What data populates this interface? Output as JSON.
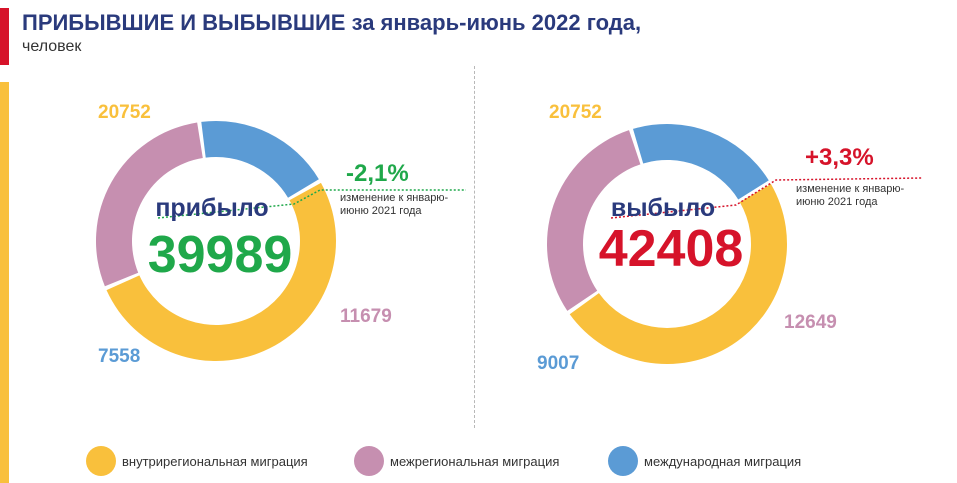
{
  "header": {
    "title_bold": "ПРИБЫВШИЕ И ВЫБЫВШИЕ",
    "title_rest": "за январь-июнь 2022 года,",
    "unit": "человек"
  },
  "colors": {
    "intraregional": "#f9c03c",
    "interregional": "#c68fb0",
    "international": "#5b9bd5",
    "title": "#2a3a7c",
    "positive": "#1fa84a",
    "negative": "#d6132a"
  },
  "chart_data": [
    {
      "type": "pie",
      "center_label": "прибыло",
      "total": "39989",
      "change": "-2,1%",
      "change_note": [
        "изменение к январю-",
        "июню 2021 года"
      ],
      "slices": [
        {
          "key": "intraregional",
          "label": "внутрирегиональная миграция",
          "value": 20752
        },
        {
          "key": "interregional",
          "label": "межрегиональная миграция",
          "value": 11679
        },
        {
          "key": "international",
          "label": "международная миграция",
          "value": 7558
        }
      ]
    },
    {
      "type": "pie",
      "center_label": "выбыло",
      "total": "42408",
      "change": "+3,3%",
      "change_note": [
        "изменение к январю-",
        "июню 2021 года"
      ],
      "slices": [
        {
          "key": "intraregional",
          "label": "внутрирегиональная миграция",
          "value": 20752
        },
        {
          "key": "interregional",
          "label": "межрегиональная миграция",
          "value": 12649
        },
        {
          "key": "international",
          "label": "международная миграция",
          "value": 9007
        }
      ]
    }
  ],
  "legend": [
    {
      "key": "intraregional",
      "label": "внутрирегиональная миграция"
    },
    {
      "key": "interregional",
      "label": "межрегиональная миграция"
    },
    {
      "key": "international",
      "label": "международная миграция"
    }
  ]
}
